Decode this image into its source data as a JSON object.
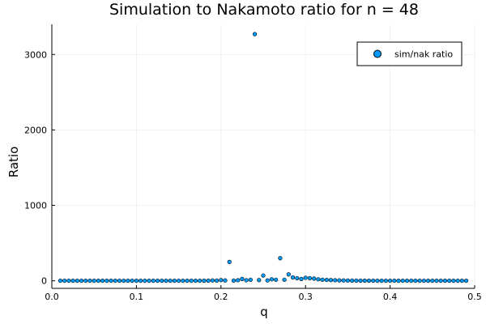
{
  "chart_data": {
    "type": "scatter",
    "title": "Simulation to Nakamoto ratio for n = 48",
    "xlabel": "q",
    "ylabel": "Ratio",
    "xlim": [
      0.0,
      0.5
    ],
    "ylim": [
      -100,
      3400
    ],
    "xticks": [
      0.0,
      0.1,
      0.2,
      0.3,
      0.4,
      0.5
    ],
    "xtick_labels": [
      "0.0",
      "0.1",
      "0.2",
      "0.3",
      "0.4",
      "0.5"
    ],
    "yticks": [
      0,
      1000,
      2000,
      3000
    ],
    "ytick_labels": [
      "0",
      "1000",
      "2000",
      "3000"
    ],
    "grid": true,
    "legend_position": "top-right",
    "colors": {
      "marker_fill": "#009AFA",
      "marker_stroke": "#000000"
    },
    "series": [
      {
        "name": "sim/nak ratio",
        "x": [
          0.01,
          0.015,
          0.02,
          0.025,
          0.03,
          0.035,
          0.04,
          0.045,
          0.05,
          0.055,
          0.06,
          0.065,
          0.07,
          0.075,
          0.08,
          0.085,
          0.09,
          0.095,
          0.1,
          0.105,
          0.11,
          0.115,
          0.12,
          0.125,
          0.13,
          0.135,
          0.14,
          0.145,
          0.15,
          0.155,
          0.16,
          0.165,
          0.17,
          0.175,
          0.18,
          0.185,
          0.19,
          0.195,
          0.2,
          0.205,
          0.21,
          0.215,
          0.22,
          0.225,
          0.23,
          0.235,
          0.24,
          0.245,
          0.25,
          0.255,
          0.26,
          0.265,
          0.27,
          0.275,
          0.28,
          0.285,
          0.29,
          0.295,
          0.3,
          0.305,
          0.31,
          0.315,
          0.32,
          0.325,
          0.33,
          0.335,
          0.34,
          0.345,
          0.35,
          0.355,
          0.36,
          0.365,
          0.37,
          0.375,
          0.38,
          0.385,
          0.39,
          0.395,
          0.4,
          0.405,
          0.41,
          0.415,
          0.42,
          0.425,
          0.43,
          0.435,
          0.44,
          0.445,
          0.45,
          0.455,
          0.46,
          0.465,
          0.47,
          0.475,
          0.48,
          0.485,
          0.49
        ],
        "y": [
          1,
          1,
          1,
          1,
          1,
          1,
          1,
          1,
          1,
          1,
          1,
          1,
          1,
          1,
          1,
          1,
          1,
          1,
          1,
          1,
          1,
          1,
          1,
          1,
          1,
          1,
          1,
          1,
          1,
          1,
          1,
          1,
          1,
          1,
          2,
          2,
          5,
          3,
          10,
          5,
          250,
          3,
          8,
          25,
          8,
          15,
          3270,
          10,
          70,
          5,
          20,
          15,
          300,
          15,
          85,
          45,
          35,
          25,
          40,
          35,
          30,
          20,
          15,
          12,
          10,
          8,
          6,
          5,
          4,
          3,
          3,
          2,
          2,
          2,
          2,
          1,
          1,
          1,
          1,
          1,
          1,
          1,
          1,
          1,
          1,
          1,
          1,
          1,
          1,
          1,
          1,
          1,
          1,
          1,
          1,
          1,
          1
        ]
      }
    ]
  }
}
